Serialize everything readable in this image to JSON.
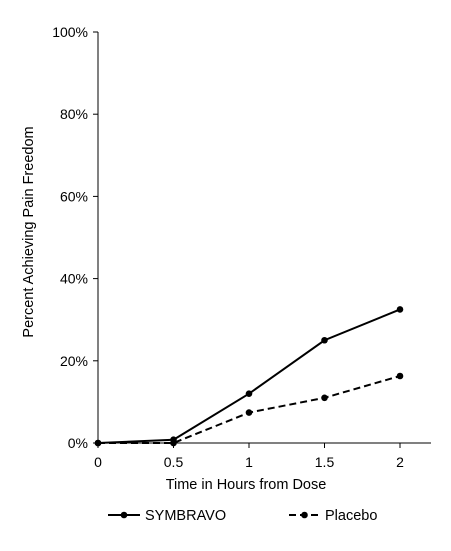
{
  "chart_data": {
    "type": "line",
    "title": "",
    "xlabel": "Time in Hours from Dose",
    "ylabel": "Percent Achieving Pain Freedom",
    "x": [
      0,
      0.5,
      1,
      1.5,
      2
    ],
    "x_tick_labels": [
      "0",
      "0.5",
      "1",
      "1.5",
      "2"
    ],
    "xlim": [
      0,
      2.2
    ],
    "ylim": [
      0,
      100
    ],
    "y_ticks": [
      0,
      20,
      40,
      60,
      80,
      100
    ],
    "y_tick_labels": [
      "0%",
      "20%",
      "40%",
      "60%",
      "80%",
      "100%"
    ],
    "grid": false,
    "legend_position": "bottom",
    "series": [
      {
        "name": "SYMBRAVO",
        "values": [
          0,
          0.8,
          12,
          25,
          32.5
        ],
        "style": "solid",
        "color": "#000000"
      },
      {
        "name": "Placebo",
        "values": [
          0,
          0,
          7.4,
          11,
          16.3
        ],
        "style": "dashed",
        "color": "#000000"
      }
    ]
  }
}
